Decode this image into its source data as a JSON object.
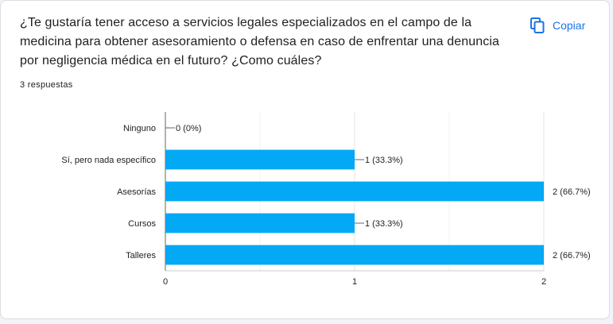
{
  "question": {
    "title": "¿Te gustaría tener acceso a servicios legales especializados en el campo de la medicina para obtener asesoramiento o defensa en caso de enfrentar una denuncia por negligencia médica en el futuro?  ¿Como cuáles?",
    "response_count": "3 respuestas"
  },
  "toolbar": {
    "copy_label": "Copiar",
    "copy_icon": "copy-icon"
  },
  "colors": {
    "bar": "#03a9f4",
    "grid": "#e6e6e6",
    "axis": "#666666",
    "text": "#222222",
    "accent": "#1a73e8"
  },
  "chart_data": {
    "type": "bar",
    "orientation": "horizontal",
    "categories": [
      "Ninguno",
      "Sí, pero nada específico",
      "Asesorías",
      "Cursos",
      "Talleres"
    ],
    "values": [
      0,
      1,
      2,
      1,
      2
    ],
    "data_labels": [
      "0 (0%)",
      "1 (33.3%)",
      "2 (66.7%)",
      "1 (33.3%)",
      "2 (66.7%)"
    ],
    "xticks": [
      "0",
      "1",
      "2"
    ],
    "xlim": [
      0,
      2
    ],
    "grid": true,
    "title": "",
    "xlabel": "",
    "ylabel": ""
  }
}
